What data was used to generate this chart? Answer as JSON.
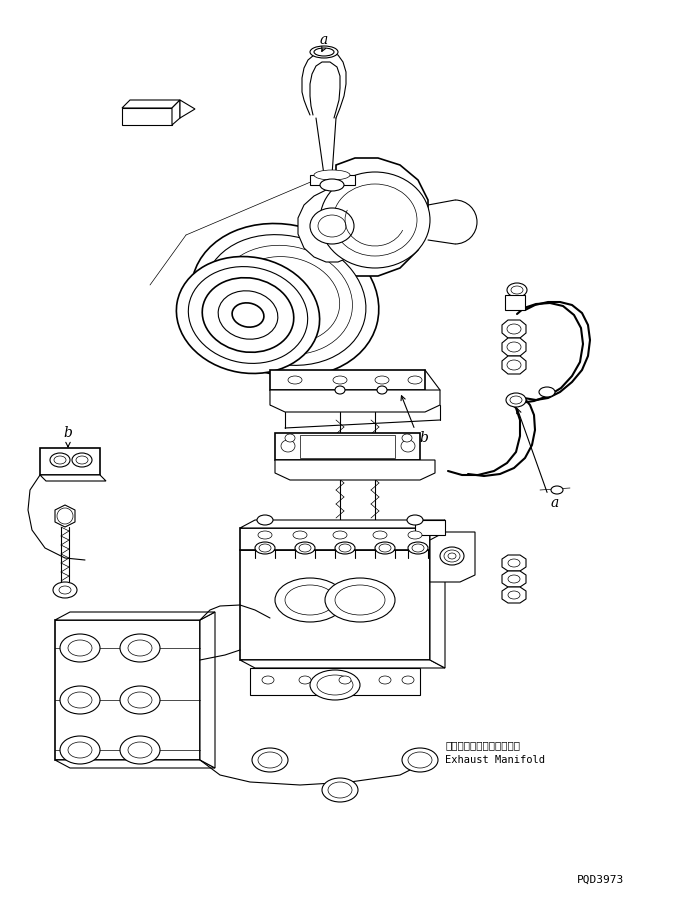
{
  "fig_width": 6.97,
  "fig_height": 9.09,
  "dpi": 100,
  "bg_color": "#ffffff",
  "line_color": "#000000",
  "lw": 0.8,
  "lw_thick": 1.2,
  "lw_thin": 0.5,
  "part_number": "PQD3973",
  "exhaust_jp": "エキゾーストマニホールド",
  "exhaust_en": "Exhaust Manifold"
}
